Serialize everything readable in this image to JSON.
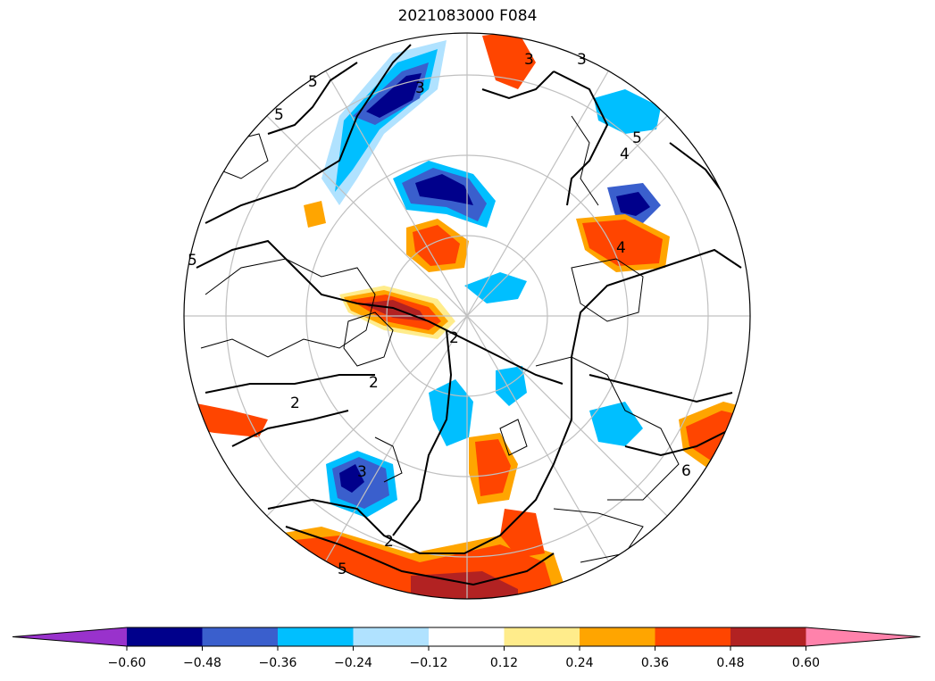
{
  "title": "2021083000 F084",
  "colorbar": {
    "bins": [
      {
        "color": "#9932cc"
      },
      {
        "color": "#00008b"
      },
      {
        "color": "#3a5fcd"
      },
      {
        "color": "#00bfff"
      },
      {
        "color": "#b0e2ff"
      },
      {
        "color": "#ffffff"
      },
      {
        "color": "#ffec8b"
      },
      {
        "color": "#ffa500"
      },
      {
        "color": "#ff4500"
      },
      {
        "color": "#b22222"
      },
      {
        "color": "#ff82ab"
      }
    ],
    "ticks": [
      "−0.60",
      "−0.48",
      "−0.36",
      "−0.24",
      "−0.12",
      "0.12",
      "0.24",
      "0.36",
      "0.48",
      "0.60"
    ]
  },
  "contour_labels": [
    "5",
    "5",
    "5",
    "5",
    "3",
    "3",
    "3",
    "4",
    "5",
    "2",
    "2",
    "2",
    "2",
    "3",
    "4",
    "6"
  ]
}
